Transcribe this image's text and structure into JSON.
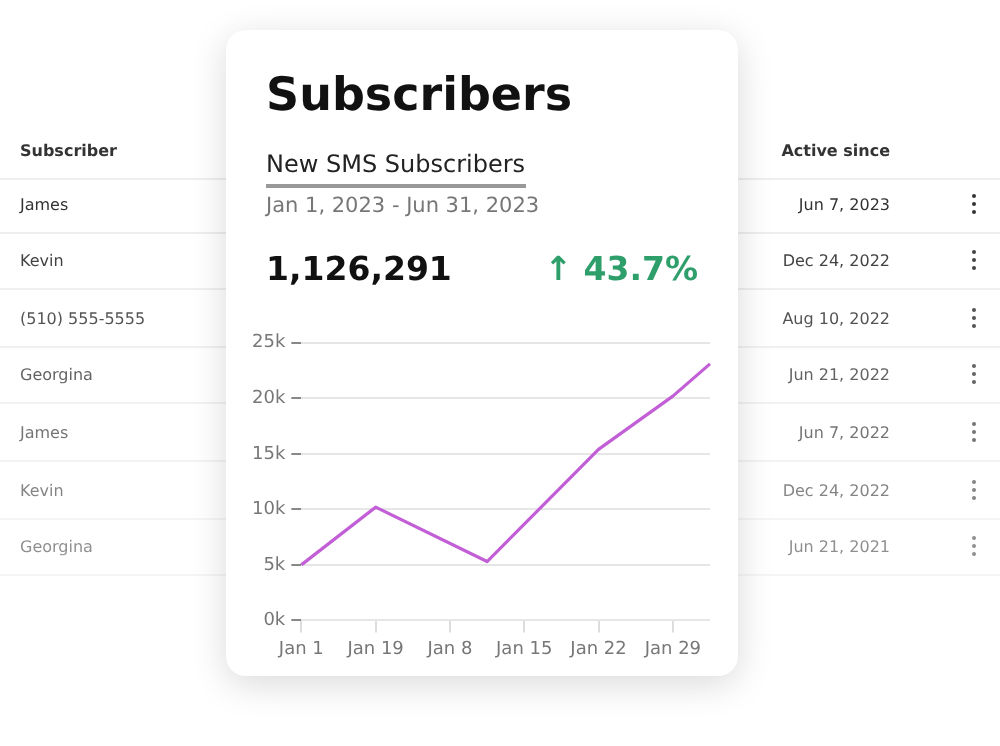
{
  "chart_data": {
    "type": "line",
    "title": "Subscribers",
    "subtitle": "New SMS Subscribers",
    "categories": [
      "Jan 1",
      null,
      "Jan 19",
      null,
      "Jan 8",
      null,
      "Jan 15",
      null,
      "Jan 22",
      null,
      "Jan 29",
      null
    ],
    "series": [
      {
        "color": "#c25fd6",
        "values": [
          5,
          null,
          10.2,
          null,
          null,
          5.3,
          null,
          null,
          15.4,
          null,
          20.2,
          23.1
        ]
      }
    ],
    "ylim": [
      0,
      25
    ],
    "yticks": [
      {
        "value": 0,
        "label": "0k"
      },
      {
        "value": 5,
        "label": "5k"
      },
      {
        "value": 10,
        "label": "10k"
      },
      {
        "value": 15,
        "label": "15k"
      },
      {
        "value": 20,
        "label": "20k"
      },
      {
        "value": 25,
        "label": "25k"
      }
    ],
    "grid": "y",
    "legend": false,
    "marker": "none",
    "line_style": "solid",
    "annotations": [
      "Jan 1, 2023 - Jun 31, 2023",
      "1,126,291",
      "↑ 43.7%",
      "Subscriber",
      "Active since",
      "James",
      "Jun 7, 2023",
      "Kevin",
      "Dec 24, 2022",
      "(510) 555-5555",
      "Aug 10, 2022",
      "Georgina",
      "Jun 21, 2022",
      "James",
      "Jun 7, 2022",
      "Kevin",
      "Dec 24, 2022",
      "Georgina",
      "Jun 21, 2021"
    ]
  }
}
